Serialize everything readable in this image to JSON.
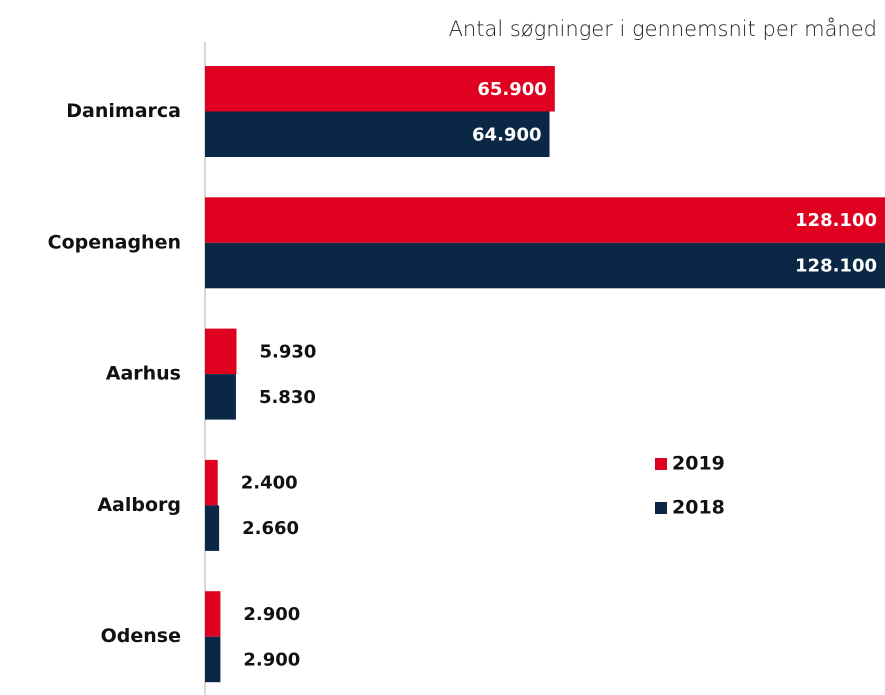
{
  "chart_data": {
    "type": "bar",
    "orientation": "horizontal",
    "title": "Antal søgninger i gennemsnit per måned",
    "categories": [
      "Danimarca",
      "Copenaghen",
      "Aarhus",
      "Aalborg",
      "Odense"
    ],
    "series": [
      {
        "name": "2019",
        "color": "#e0001f",
        "values": [
          65900,
          128100,
          5930,
          2400,
          2900
        ],
        "value_labels": [
          "65.900",
          "128.100",
          "5.930",
          "2.400",
          "2.900"
        ]
      },
      {
        "name": "2018",
        "color": "#0a2745",
        "values": [
          64900,
          128100,
          5830,
          2660,
          2900
        ],
        "value_labels": [
          "64.900",
          "128.100",
          "5.830",
          "2.660",
          "2.900"
        ]
      }
    ],
    "legend": "right"
  }
}
